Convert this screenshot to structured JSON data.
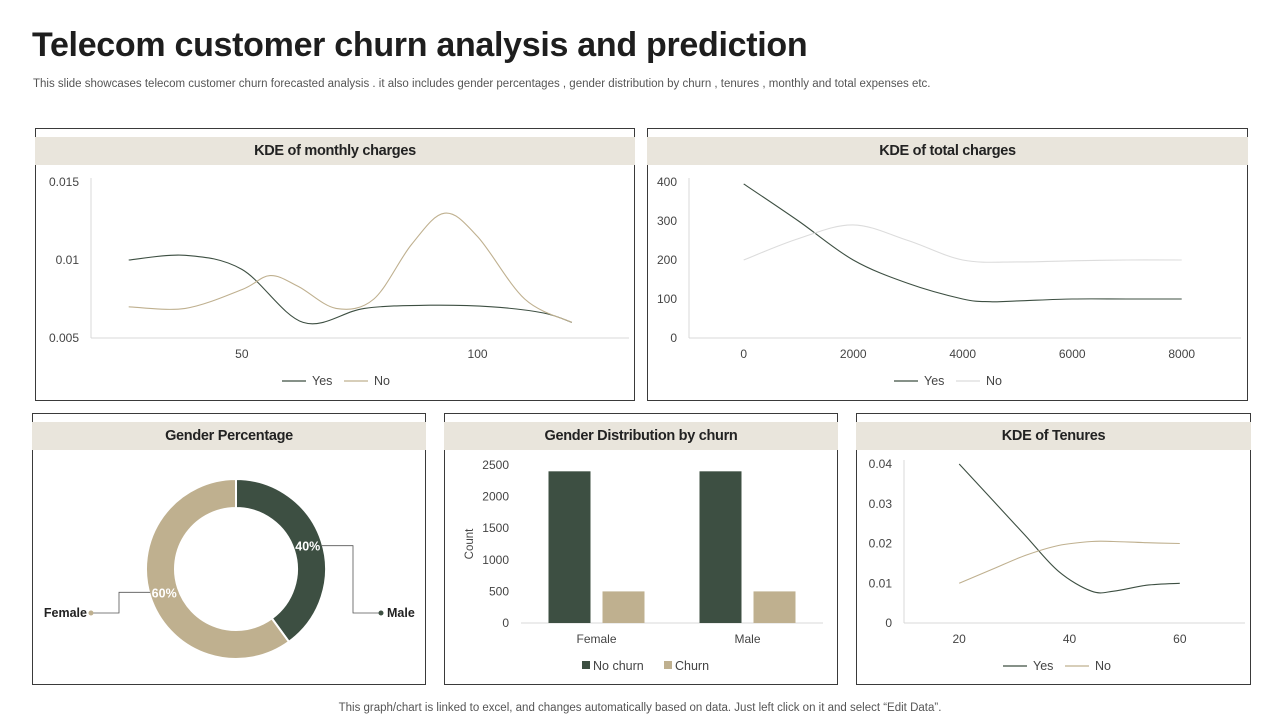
{
  "page": {
    "title": "Telecom customer churn analysis and prediction",
    "subtitle": "This slide showcases telecom customer churn  forecasted analysis . it also includes gender percentages , gender distribution by churn ,  tenures ,  monthly and total expenses etc.",
    "footer": "This graph/chart is linked to excel,  and changes automatically based on data. Just left click on it and select “Edit Data”."
  },
  "colors": {
    "dark_green": "#3d4f42",
    "beige": "#bfb08f",
    "light_line": "#dcdcdc",
    "header_bg": "#e9e5dc"
  },
  "chart_data": [
    {
      "id": "monthly",
      "type": "line",
      "title": "KDE of monthly charges",
      "xlim": [
        18,
        130
      ],
      "ylim": [
        0.005,
        0.015
      ],
      "x_ticks": [
        50,
        100
      ],
      "y_ticks": [
        0.005,
        0.01,
        0.015
      ],
      "y_tick_labels": [
        "0.005",
        "0.01",
        "0.015"
      ],
      "series": [
        {
          "name": "Yes",
          "color": "#3d4f42",
          "points": [
            [
              26,
              0.01
            ],
            [
              38,
              0.0103
            ],
            [
              50,
              0.0094
            ],
            [
              63,
              0.006
            ],
            [
              76,
              0.0069
            ],
            [
              90,
              0.0071
            ],
            [
              103,
              0.007
            ],
            [
              114,
              0.0066
            ],
            [
              120,
              0.006
            ]
          ]
        },
        {
          "name": "No",
          "color": "#bfb08f",
          "points": [
            [
              26,
              0.007
            ],
            [
              38,
              0.0069
            ],
            [
              50,
              0.0081
            ],
            [
              56,
              0.009
            ],
            [
              62,
              0.0083
            ],
            [
              70,
              0.0069
            ],
            [
              78,
              0.0075
            ],
            [
              86,
              0.011
            ],
            [
              93,
              0.013
            ],
            [
              100,
              0.0115
            ],
            [
              110,
              0.0075
            ],
            [
              120,
              0.006
            ]
          ]
        }
      ],
      "legend": {
        "position": "bottom"
      }
    },
    {
      "id": "total",
      "type": "line",
      "title": "KDE of total charges",
      "xlim": [
        -1000,
        8900
      ],
      "ylim": [
        0,
        400
      ],
      "x_ticks": [
        0,
        2000,
        4000,
        6000,
        8000
      ],
      "y_ticks": [
        0,
        100,
        200,
        300,
        400
      ],
      "series": [
        {
          "name": "Yes",
          "color": "#3d4f42",
          "points": [
            [
              0,
              395
            ],
            [
              1000,
              300
            ],
            [
              2000,
              200
            ],
            [
              3000,
              140
            ],
            [
              4000,
              100
            ],
            [
              4500,
              93
            ],
            [
              5000,
              95
            ],
            [
              6000,
              100
            ],
            [
              7000,
              100
            ],
            [
              8000,
              100
            ]
          ]
        },
        {
          "name": "No",
          "color": "#dcdcdc",
          "points": [
            [
              0,
              200
            ],
            [
              1000,
              255
            ],
            [
              2000,
              290
            ],
            [
              3000,
              250
            ],
            [
              4000,
              200
            ],
            [
              5000,
              195
            ],
            [
              6000,
              198
            ],
            [
              7000,
              200
            ],
            [
              8000,
              200
            ]
          ]
        }
      ],
      "legend": {
        "position": "bottom"
      }
    },
    {
      "id": "gender_pct",
      "type": "pie",
      "title": "Gender Percentage",
      "slices": [
        {
          "label": "Male",
          "value": 40,
          "value_label": "40%",
          "color": "#3d4f42"
        },
        {
          "label": "Female",
          "value": 60,
          "value_label": "60%",
          "color": "#bfb08f"
        }
      ]
    },
    {
      "id": "gender_dist",
      "type": "bar",
      "title": "Gender Distribution by churn",
      "ylabel": "Count",
      "ylim": [
        0,
        2500
      ],
      "y_ticks": [
        0,
        500,
        1000,
        1500,
        2000,
        2500
      ],
      "categories": [
        "Female",
        "Male"
      ],
      "series": [
        {
          "name": "No churn",
          "color": "#3d4f42",
          "values": [
            2400,
            2400
          ]
        },
        {
          "name": "Churn",
          "color": "#bfb08f",
          "values": [
            500,
            500
          ]
        }
      ],
      "legend": {
        "position": "bottom"
      }
    },
    {
      "id": "tenures",
      "type": "line",
      "title": "KDE of Tenures",
      "xlim": [
        10,
        70
      ],
      "ylim": [
        0,
        0.04
      ],
      "x_ticks": [
        20,
        40,
        60
      ],
      "y_ticks": [
        0,
        0.01,
        0.02,
        0.03,
        0.04
      ],
      "y_tick_labels": [
        "0",
        "0.01",
        "0.02",
        "0.03",
        "0.04"
      ],
      "series": [
        {
          "name": "Yes",
          "color": "#3d4f42",
          "points": [
            [
              20,
              0.04
            ],
            [
              26,
              0.031
            ],
            [
              32,
              0.022
            ],
            [
              38,
              0.013
            ],
            [
              44,
              0.008
            ],
            [
              48,
              0.008
            ],
            [
              54,
              0.0095
            ],
            [
              60,
              0.01
            ]
          ]
        },
        {
          "name": "No",
          "color": "#bfb08f",
          "points": [
            [
              20,
              0.01
            ],
            [
              26,
              0.0135
            ],
            [
              32,
              0.017
            ],
            [
              38,
              0.0195
            ],
            [
              44,
              0.0205
            ],
            [
              48,
              0.0205
            ],
            [
              54,
              0.0202
            ],
            [
              60,
              0.02
            ]
          ]
        }
      ],
      "legend": {
        "position": "bottom"
      }
    }
  ]
}
